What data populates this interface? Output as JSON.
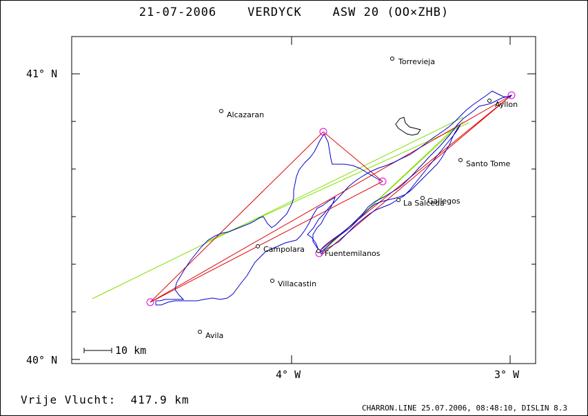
{
  "header": {
    "title": "21-07-2006    VERDYCK    ASW 20 (OO×ZHB)"
  },
  "footer": {
    "distance_label": "Vrije Vlucht:  417.9 km",
    "info": "CHARRON.LINE 25.07.2006, 08:48:10, DISLIN 8.3"
  },
  "axes": {
    "lat_labels": [
      "41° N",
      "40° N"
    ],
    "lon_labels": [
      "4° W",
      "3° W"
    ]
  },
  "scale_bar": {
    "label": "10 km"
  },
  "places": [
    {
      "name": "Torrevieja"
    },
    {
      "name": "Alcazaran"
    },
    {
      "name": "Ayllon"
    },
    {
      "name": "Santo Tome"
    },
    {
      "name": "Gallegos"
    },
    {
      "name": "La Salceda"
    },
    {
      "name": "Campolara"
    },
    {
      "name": "Fuentemilanos"
    },
    {
      "name": "Villacastin"
    },
    {
      "name": "Avila"
    }
  ],
  "colors": {
    "track": "#0000cc",
    "task_line": "#e00000",
    "alt_line": "#80e000",
    "turnpoint": "#e000e0",
    "frame": "#000000"
  }
}
